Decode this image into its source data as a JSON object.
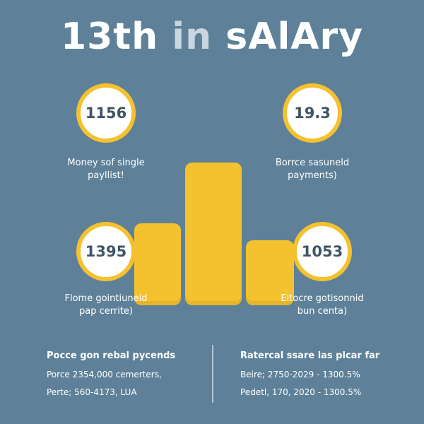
{
  "title": {
    "part1": "13th",
    "part2": "in",
    "part3": "sAlAry"
  },
  "stats": [
    {
      "value": "1156",
      "caption_line1": "Money sof single",
      "caption_line2": "payllist!"
    },
    {
      "value": "19.3",
      "caption_line1": "Borrce sasuneld",
      "caption_line2": "payments)"
    },
    {
      "value": "1395",
      "caption_line1": "Flome gointiuneid",
      "caption_line2": "pap cerrite)"
    },
    {
      "value": "1053",
      "caption_line1": "Eitocre gotisonnid",
      "caption_line2": "bun centa)"
    }
  ],
  "bottom_left": {
    "heading": "Pocce gon rebal pycends",
    "line1": "Porce 2354,000 cemerters,",
    "line2": "Perte; 560-4173, LUA"
  },
  "bottom_right": {
    "heading": "Ratercal ssare las plcar far",
    "line1": "Beire; 2750-2029 - 1300.5%",
    "line2": "Pedetl, 170, 2020 - 1300.5%"
  },
  "colors": {
    "background": "#5e8199",
    "accent": "#f4c12f",
    "text": "#ffffff",
    "number": "#3f5466"
  }
}
